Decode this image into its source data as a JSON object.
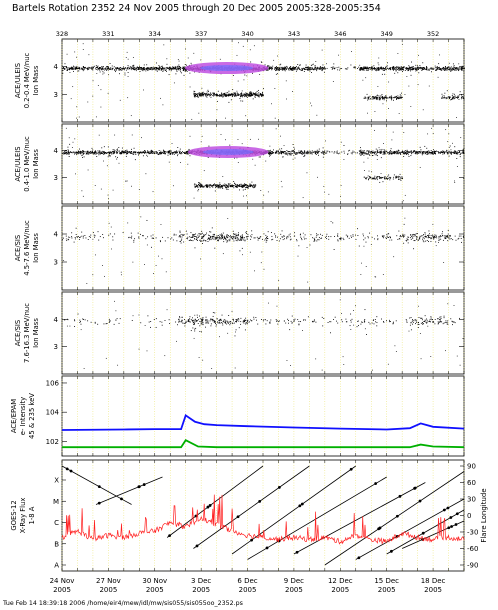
{
  "header": {
    "title": "Bartels Rotation 2352     24 Nov 2005 through 20 Dec 2005     2005:328-2005:354"
  },
  "footer": {
    "text": "Tue Feb 14 18:39:18 2006     /home/eir4/mew/idl/mw/sis055/sis055oo_2352.ps"
  },
  "chart_data": [
    {
      "type": "scatter",
      "panel": "ACE/ULEIS 0.2-0.4 MeV/nuc",
      "ylabel": [
        "ACE/ULEIS",
        "0.2-0.4 MeV/nuc",
        "Ion Mass"
      ],
      "yticks": [
        "4",
        "3"
      ],
      "ylim": [
        2.0,
        5.0
      ],
      "top_doy_ticks": [
        "328",
        "331",
        "334",
        "337",
        "340",
        "343",
        "346",
        "349",
        "352"
      ],
      "density_segments": [
        {
          "from_day": 0.0,
          "to_day": 7.8,
          "mass": 3.95,
          "level": 0.7
        },
        {
          "from_day": 7.8,
          "to_day": 13.5,
          "mass": 3.95,
          "level": 1.0,
          "color": "#d040e0"
        },
        {
          "from_day": 13.5,
          "to_day": 17.0,
          "mass": 3.95,
          "level": 0.8
        },
        {
          "from_day": 17.0,
          "to_day": 19.2,
          "mass": 3.95,
          "level": 0.15
        },
        {
          "from_day": 19.2,
          "to_day": 26.0,
          "mass": 3.95,
          "level": 0.8
        },
        {
          "from_day": 19.5,
          "to_day": 22.0,
          "mass": 2.9,
          "level": 0.6
        },
        {
          "from_day": 24.5,
          "to_day": 26.0,
          "mass": 2.9,
          "level": 0.5
        },
        {
          "from_day": 8.5,
          "to_day": 13.0,
          "mass": 3.0,
          "level": 0.9
        }
      ]
    },
    {
      "type": "scatter",
      "panel": "ACE/ULEIS 0.4-1.0 MeV/nuc",
      "ylabel": [
        "ACE/ULEIS",
        "0.4-1.0 MeV/nuc",
        "Ion Mass"
      ],
      "yticks": [
        "4",
        "3"
      ],
      "ylim": [
        2.0,
        5.0
      ],
      "density_segments": [
        {
          "from_day": 0.0,
          "to_day": 8.0,
          "mass": 3.95,
          "level": 0.7
        },
        {
          "from_day": 8.0,
          "to_day": 13.5,
          "mass": 3.95,
          "level": 1.0,
          "color": "#d040e0"
        },
        {
          "from_day": 13.5,
          "to_day": 17.0,
          "mass": 3.95,
          "level": 0.6
        },
        {
          "from_day": 17.0,
          "to_day": 19.2,
          "mass": 3.95,
          "level": 0.15
        },
        {
          "from_day": 19.2,
          "to_day": 26.0,
          "mass": 3.95,
          "level": 0.7
        },
        {
          "from_day": 8.5,
          "to_day": 12.5,
          "mass": 2.7,
          "level": 0.8
        },
        {
          "from_day": 19.5,
          "to_day": 22.0,
          "mass": 3.0,
          "level": 0.4
        }
      ]
    },
    {
      "type": "scatter",
      "panel": "ACE/SIS 4.5-7.6 MeV/nuc",
      "ylabel": [
        "ACE/SIS",
        "4.5-7.6 MeV/nuc",
        "Ion Mass"
      ],
      "yticks": [
        "4",
        "3"
      ],
      "ylim": [
        2.0,
        5.0
      ],
      "density_segments": [
        {
          "from_day": 0.0,
          "to_day": 7.5,
          "mass": 3.9,
          "level": 0.2
        },
        {
          "from_day": 7.5,
          "to_day": 12.0,
          "mass": 3.9,
          "level": 1.0
        },
        {
          "from_day": 12.0,
          "to_day": 22.0,
          "mass": 3.9,
          "level": 0.3
        },
        {
          "from_day": 22.0,
          "to_day": 25.0,
          "mass": 3.9,
          "level": 0.8
        },
        {
          "from_day": 25.0,
          "to_day": 26.0,
          "mass": 3.9,
          "level": 0.3
        }
      ]
    },
    {
      "type": "scatter",
      "panel": "ACE/SIS 7.6-16.3 MeV/nuc",
      "ylabel": [
        "ACE/SIS",
        "7.6-16.3 MeV/nuc",
        "Ion Mass"
      ],
      "yticks": [
        "4",
        "3"
      ],
      "ylim": [
        2.0,
        5.0
      ],
      "density_segments": [
        {
          "from_day": 0.0,
          "to_day": 7.5,
          "mass": 3.95,
          "level": 0.12
        },
        {
          "from_day": 7.5,
          "to_day": 12.0,
          "mass": 3.95,
          "level": 0.8
        },
        {
          "from_day": 12.0,
          "to_day": 22.5,
          "mass": 3.95,
          "level": 0.2
        },
        {
          "from_day": 22.5,
          "to_day": 25.0,
          "mass": 3.95,
          "level": 0.6
        },
        {
          "from_day": 25.0,
          "to_day": 26.0,
          "mass": 3.95,
          "level": 0.15
        }
      ]
    },
    {
      "type": "line",
      "panel": "ACE/EPAM electron intensity",
      "ylabel": [
        "ACE/EPAM",
        "e- Intensity",
        "45 & 235 keV"
      ],
      "yticks": [
        "10^6",
        "10^4",
        "10^2"
      ],
      "log_scale": true,
      "ylim": [
        10,
        3000000.0
      ],
      "series": [
        {
          "color": "#1010ff",
          "x": [
            0,
            4,
            6,
            7.7,
            8.0,
            8.6,
            9.2,
            10,
            12,
            15,
            18,
            21,
            22.5,
            23.2,
            24,
            26
          ],
          "y": [
            600,
            650,
            700,
            700,
            6000,
            2200,
            1500,
            1300,
            1100,
            900,
            750,
            650,
            800,
            1700,
            1000,
            750
          ]
        },
        {
          "color": "#00b000",
          "x": [
            0,
            7.7,
            8.0,
            8.8,
            10,
            22.5,
            23.2,
            24,
            26
          ],
          "y": [
            40,
            40,
            120,
            45,
            40,
            40,
            60,
            45,
            40
          ]
        }
      ]
    },
    {
      "type": "line",
      "panel": "GOES-12 X-Ray Flux",
      "ylabel": [
        "GOES-12",
        "X-Ray Flux",
        "1-8 A"
      ],
      "left_ticks": [
        "X",
        "M",
        "C",
        "B",
        "A"
      ],
      "right_ticks": [
        "90",
        "60",
        "30",
        "0",
        "-30",
        "-60",
        "-90"
      ],
      "right_label": "Flare Longitude",
      "x_labels": [
        [
          "24 Nov",
          "2005"
        ],
        [
          "27 Nov",
          "2005"
        ],
        [
          "30 Nov",
          "2005"
        ],
        [
          "3 Dec",
          "2005"
        ],
        [
          "6 Dec",
          "2005"
        ],
        [
          "9 Dec",
          "2005"
        ],
        [
          "12 Dec",
          "2005"
        ],
        [
          "15 Dec",
          "2005"
        ],
        [
          "18 Dec",
          "2005"
        ]
      ],
      "flare_tracks": [
        {
          "from_day": 0.0,
          "to_day": 4.5,
          "lon_from": 90,
          "lon_to": 20
        },
        {
          "from_day": 2.2,
          "to_day": 6.5,
          "lon_from": 20,
          "lon_to": 70
        },
        {
          "from_day": 6.8,
          "to_day": 13.0,
          "lon_from": -40,
          "lon_to": 90
        },
        {
          "from_day": 8.5,
          "to_day": 16.0,
          "lon_from": -60,
          "lon_to": 90
        },
        {
          "from_day": 11.0,
          "to_day": 19.0,
          "lon_from": -70,
          "lon_to": 90
        },
        {
          "from_day": 12.0,
          "to_day": 21.0,
          "lon_from": -80,
          "lon_to": 70
        },
        {
          "from_day": 15.0,
          "to_day": 23.5,
          "lon_from": -70,
          "lon_to": 60
        },
        {
          "from_day": 17.0,
          "to_day": 26.0,
          "lon_from": -90,
          "lon_to": 80
        },
        {
          "from_day": 19.0,
          "to_day": 26.0,
          "lon_from": -80,
          "lon_to": 30
        },
        {
          "from_day": 21.0,
          "to_day": 26.0,
          "lon_from": -70,
          "lon_to": 10
        },
        {
          "from_day": 22.0,
          "to_day": 26.0,
          "lon_from": -60,
          "lon_to": -10
        }
      ],
      "xray_level": [
        {
          "day": 0,
          "level": 1.3
        },
        {
          "day": 1,
          "level": 1.6
        },
        {
          "day": 2,
          "level": 1.2
        },
        {
          "day": 3,
          "level": 1.4
        },
        {
          "day": 4,
          "level": 1.3
        },
        {
          "day": 5,
          "level": 1.5
        },
        {
          "day": 6,
          "level": 1.6
        },
        {
          "day": 7,
          "level": 2.0
        },
        {
          "day": 8,
          "level": 1.8
        },
        {
          "day": 9,
          "level": 2.2
        },
        {
          "day": 10,
          "level": 1.9
        },
        {
          "day": 11,
          "level": 1.6
        },
        {
          "day": 12,
          "level": 1.4
        },
        {
          "day": 13,
          "level": 1.3
        },
        {
          "day": 14,
          "level": 1.2
        },
        {
          "day": 15,
          "level": 1.3
        },
        {
          "day": 16,
          "level": 1.2
        },
        {
          "day": 17,
          "level": 1.3
        },
        {
          "day": 18,
          "level": 1.1
        },
        {
          "day": 19,
          "level": 1.4
        },
        {
          "day": 20,
          "level": 1.2
        },
        {
          "day": 21,
          "level": 1.1
        },
        {
          "day": 22,
          "level": 1.5
        },
        {
          "day": 23,
          "level": 1.3
        },
        {
          "day": 24,
          "level": 1.2
        },
        {
          "day": 25,
          "level": 1.3
        },
        {
          "day": 26,
          "level": 1.2
        }
      ]
    }
  ]
}
